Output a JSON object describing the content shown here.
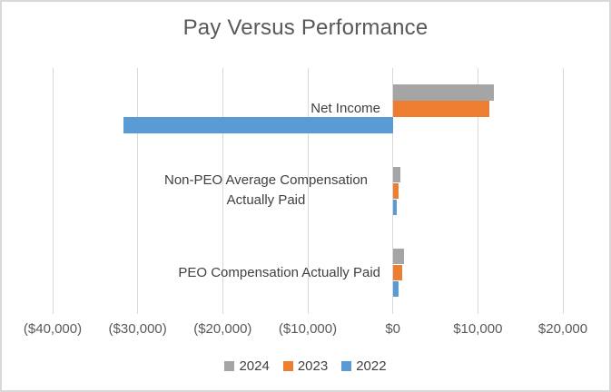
{
  "colors": {
    "background": "#ffffff",
    "frame_border": "#d9d9d9",
    "gridline": "#d9d9d9",
    "axis_line": "#d9d9d9",
    "title_text": "#595959",
    "category_text": "#404040",
    "axis_text": "#595959",
    "legend_text": "#404040",
    "series_2024": "#a5a5a5",
    "series_2023": "#ed7d31",
    "series_2022": "#5b9bd5"
  },
  "chart_data": {
    "type": "bar",
    "orientation": "horizontal",
    "title": "Pay Versus Performance",
    "categories": [
      "Net Income",
      "Non-PEO Average Compensation Actually Paid",
      "PEO Compensation Actually Paid"
    ],
    "series": [
      {
        "name": "2024",
        "color": "#a5a5a5",
        "values": [
          11850,
          900,
          1300
        ]
      },
      {
        "name": "2023",
        "color": "#ed7d31",
        "values": [
          11350,
          650,
          1100
        ]
      },
      {
        "name": "2022",
        "color": "#5b9bd5",
        "values": [
          -31700,
          450,
          700
        ]
      }
    ],
    "x_axis": {
      "min": -40000,
      "max": 20000,
      "tick_interval": 10000,
      "tick_labels": [
        "($40,000)",
        "($30,000)",
        "($20,000)",
        "($10,000)",
        "$0",
        "$10,000",
        "$20,000"
      ]
    },
    "gridlines": true,
    "legend": {
      "position": "bottom",
      "entries": [
        "2024",
        "2023",
        "2022"
      ]
    }
  }
}
